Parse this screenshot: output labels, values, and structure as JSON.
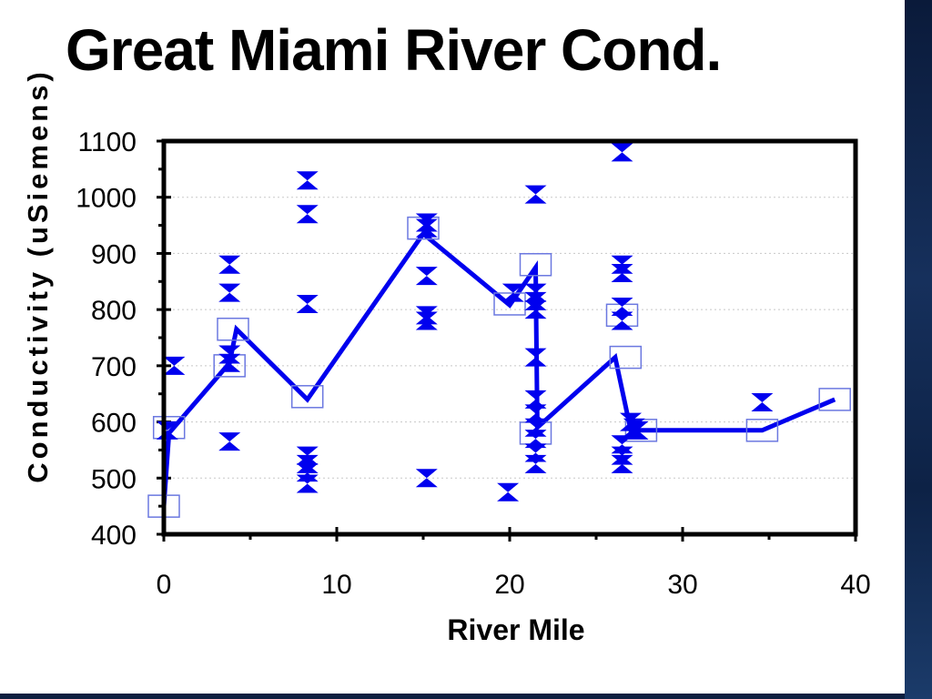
{
  "slide": {
    "title": "Great Miami River Cond."
  },
  "colors": {
    "series": "#0000ee",
    "frame": "#000000",
    "grid": "#c8c8c8",
    "marker_box": "#6b78e0",
    "background_band": "#0d2246"
  },
  "chart_data": {
    "type": "scatter",
    "title": "",
    "xlabel": "River Mile",
    "ylabel": "Conductivity (uSiemens)",
    "xlim": [
      0,
      40
    ],
    "ylim": [
      400,
      1100
    ],
    "x_ticks": [
      "0",
      "10",
      "20",
      "30",
      "40"
    ],
    "y_ticks": [
      "400",
      "500",
      "600",
      "700",
      "800",
      "900",
      "1000",
      "1100"
    ],
    "grid": "horizontal dotted",
    "legend": "none",
    "series": [
      {
        "marker": "bowtie",
        "style": "markers",
        "points": [
          [
            0.2,
            585
          ],
          [
            0.6,
            700
          ],
          [
            3.8,
            880
          ],
          [
            3.8,
            830
          ],
          [
            3.8,
            720
          ],
          [
            3.8,
            705
          ],
          [
            3.8,
            565
          ],
          [
            8.3,
            1030
          ],
          [
            8.3,
            970
          ],
          [
            8.3,
            810
          ],
          [
            8.3,
            540
          ],
          [
            8.3,
            525
          ],
          [
            8.3,
            510
          ],
          [
            8.3,
            490
          ],
          [
            15.2,
            955
          ],
          [
            15.2,
            945
          ],
          [
            15.2,
            860
          ],
          [
            15.2,
            790
          ],
          [
            15.2,
            780
          ],
          [
            15.2,
            500
          ],
          [
            19.9,
            475
          ],
          [
            20.2,
            830
          ],
          [
            21.5,
            1005
          ],
          [
            21.5,
            830
          ],
          [
            21.5,
            815
          ],
          [
            21.5,
            800
          ],
          [
            21.5,
            715
          ],
          [
            21.5,
            640
          ],
          [
            21.5,
            615
          ],
          [
            21.5,
            590
          ],
          [
            21.5,
            570
          ],
          [
            21.5,
            545
          ],
          [
            21.5,
            525
          ],
          [
            26.5,
            1080
          ],
          [
            26.5,
            880
          ],
          [
            26.5,
            865
          ],
          [
            26.5,
            805
          ],
          [
            26.5,
            780
          ],
          [
            26.5,
            560
          ],
          [
            26.5,
            540
          ],
          [
            26.5,
            525
          ],
          [
            27.0,
            600
          ],
          [
            27.2,
            590
          ],
          [
            27.4,
            585
          ],
          [
            34.6,
            635
          ]
        ]
      },
      {
        "marker": "open-square",
        "style": "line",
        "points": [
          [
            0.0,
            450
          ],
          [
            0.3,
            590
          ],
          [
            3.8,
            700
          ],
          [
            4.0,
            765
          ],
          [
            8.3,
            645
          ],
          [
            15.0,
            945
          ],
          [
            20.0,
            810
          ],
          [
            21.5,
            880
          ],
          [
            21.5,
            580
          ],
          [
            26.5,
            790
          ],
          [
            26.7,
            715
          ],
          [
            27.6,
            585
          ],
          [
            34.6,
            585
          ],
          [
            38.8,
            640
          ]
        ]
      }
    ],
    "lines": [
      {
        "name": "",
        "points": [
          [
            0.0,
            450
          ],
          [
            0.3,
            580
          ],
          [
            3.8,
            705
          ],
          [
            4.2,
            765
          ],
          [
            8.3,
            640
          ],
          [
            15.0,
            935
          ],
          [
            20.0,
            808
          ],
          [
            21.5,
            875
          ],
          [
            21.6,
            590
          ],
          [
            26.1,
            715
          ],
          [
            27.0,
            585
          ],
          [
            34.6,
            585
          ],
          [
            38.8,
            640
          ]
        ]
      }
    ]
  }
}
